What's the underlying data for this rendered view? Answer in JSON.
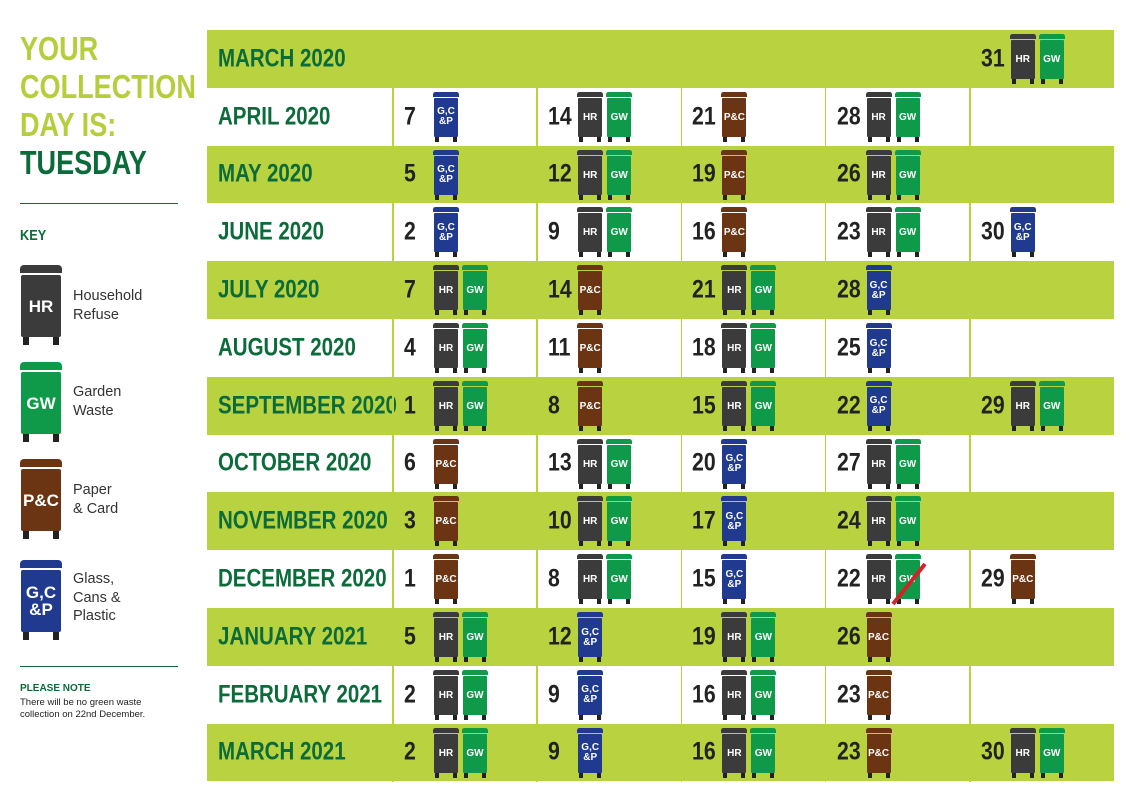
{
  "heading": {
    "line1": "YOUR",
    "line2": "COLLECTION",
    "line3": "DAY IS:",
    "day": "TUESDAY"
  },
  "key": {
    "title": "KEY",
    "items": [
      {
        "code": "HR",
        "label": "Household\nRefuse",
        "color": "#3b3b3b"
      },
      {
        "code": "GW",
        "label": "Garden\nWaste",
        "color": "#0e9a48"
      },
      {
        "code": "P&C",
        "label": "Paper\n& Card",
        "color": "#6b3514"
      },
      {
        "code": "G,C\n&P",
        "label": "Glass,\nCans &\nPlastic",
        "color": "#1f3a8f"
      }
    ]
  },
  "note": {
    "title": "PLEASE NOTE",
    "text": "There will be no green waste collection on 22nd December."
  },
  "bin_codes": {
    "HR": {
      "text": "HR",
      "color": "#3b3b3b"
    },
    "GW": {
      "text": "GW",
      "color": "#0e9a48"
    },
    "PC": {
      "text": "P&C",
      "color": "#6b3514"
    },
    "GCP": {
      "text": "G,C\n&P",
      "color": "#1f3a8f"
    }
  },
  "schedule": [
    {
      "month": "MARCH 2020",
      "weeks": [
        null,
        null,
        null,
        null,
        {
          "date": "31",
          "bins": [
            "HR",
            "GW"
          ]
        }
      ]
    },
    {
      "month": "APRIL 2020",
      "weeks": [
        {
          "date": "7",
          "bins": [
            "GCP"
          ]
        },
        {
          "date": "14",
          "bins": [
            "HR",
            "GW"
          ]
        },
        {
          "date": "21",
          "bins": [
            "PC"
          ]
        },
        {
          "date": "28",
          "bins": [
            "HR",
            "GW"
          ]
        },
        null
      ]
    },
    {
      "month": "MAY 2020",
      "weeks": [
        {
          "date": "5",
          "bins": [
            "GCP"
          ]
        },
        {
          "date": "12",
          "bins": [
            "HR",
            "GW"
          ]
        },
        {
          "date": "19",
          "bins": [
            "PC"
          ]
        },
        {
          "date": "26",
          "bins": [
            "HR",
            "GW"
          ]
        },
        null
      ]
    },
    {
      "month": "JUNE 2020",
      "weeks": [
        {
          "date": "2",
          "bins": [
            "GCP"
          ]
        },
        {
          "date": "9",
          "bins": [
            "HR",
            "GW"
          ]
        },
        {
          "date": "16",
          "bins": [
            "PC"
          ]
        },
        {
          "date": "23",
          "bins": [
            "HR",
            "GW"
          ]
        },
        {
          "date": "30",
          "bins": [
            "GCP"
          ]
        }
      ]
    },
    {
      "month": "JULY 2020",
      "weeks": [
        {
          "date": "7",
          "bins": [
            "HR",
            "GW"
          ]
        },
        {
          "date": "14",
          "bins": [
            "PC"
          ]
        },
        {
          "date": "21",
          "bins": [
            "HR",
            "GW"
          ]
        },
        {
          "date": "28",
          "bins": [
            "GCP"
          ]
        },
        null
      ]
    },
    {
      "month": "AUGUST 2020",
      "weeks": [
        {
          "date": "4",
          "bins": [
            "HR",
            "GW"
          ]
        },
        {
          "date": "11",
          "bins": [
            "PC"
          ]
        },
        {
          "date": "18",
          "bins": [
            "HR",
            "GW"
          ]
        },
        {
          "date": "25",
          "bins": [
            "GCP"
          ]
        },
        null
      ]
    },
    {
      "month": "SEPTEMBER 2020",
      "weeks": [
        {
          "date": "1",
          "bins": [
            "HR",
            "GW"
          ]
        },
        {
          "date": "8",
          "bins": [
            "PC"
          ]
        },
        {
          "date": "15",
          "bins": [
            "HR",
            "GW"
          ]
        },
        {
          "date": "22",
          "bins": [
            "GCP"
          ]
        },
        {
          "date": "29",
          "bins": [
            "HR",
            "GW"
          ]
        }
      ]
    },
    {
      "month": "OCTOBER 2020",
      "weeks": [
        {
          "date": "6",
          "bins": [
            "PC"
          ]
        },
        {
          "date": "13",
          "bins": [
            "HR",
            "GW"
          ]
        },
        {
          "date": "20",
          "bins": [
            "GCP"
          ]
        },
        {
          "date": "27",
          "bins": [
            "HR",
            "GW"
          ]
        },
        null
      ]
    },
    {
      "month": "NOVEMBER 2020",
      "weeks": [
        {
          "date": "3",
          "bins": [
            "PC"
          ]
        },
        {
          "date": "10",
          "bins": [
            "HR",
            "GW"
          ]
        },
        {
          "date": "17",
          "bins": [
            "GCP"
          ]
        },
        {
          "date": "24",
          "bins": [
            "HR",
            "GW"
          ]
        },
        null
      ]
    },
    {
      "month": "DECEMBER 2020",
      "weeks": [
        {
          "date": "1",
          "bins": [
            "PC"
          ]
        },
        {
          "date": "8",
          "bins": [
            "HR",
            "GW"
          ]
        },
        {
          "date": "15",
          "bins": [
            "GCP"
          ]
        },
        {
          "date": "22",
          "bins": [
            "HR",
            "GW"
          ],
          "cancelled": [
            "GW"
          ]
        },
        {
          "date": "29",
          "bins": [
            "PC"
          ]
        }
      ]
    },
    {
      "month": "JANUARY 2021",
      "weeks": [
        {
          "date": "5",
          "bins": [
            "HR",
            "GW"
          ]
        },
        {
          "date": "12",
          "bins": [
            "GCP"
          ]
        },
        {
          "date": "19",
          "bins": [
            "HR",
            "GW"
          ]
        },
        {
          "date": "26",
          "bins": [
            "PC"
          ]
        },
        null
      ]
    },
    {
      "month": "FEBRUARY 2021",
      "weeks": [
        {
          "date": "2",
          "bins": [
            "HR",
            "GW"
          ]
        },
        {
          "date": "9",
          "bins": [
            "GCP"
          ]
        },
        {
          "date": "16",
          "bins": [
            "HR",
            "GW"
          ]
        },
        {
          "date": "23",
          "bins": [
            "PC"
          ]
        },
        null
      ]
    },
    {
      "month": "MARCH 2021",
      "weeks": [
        {
          "date": "2",
          "bins": [
            "HR",
            "GW"
          ]
        },
        {
          "date": "9",
          "bins": [
            "GCP"
          ]
        },
        {
          "date": "16",
          "bins": [
            "HR",
            "GW"
          ]
        },
        {
          "date": "23",
          "bins": [
            "PC"
          ]
        },
        {
          "date": "30",
          "bins": [
            "HR",
            "GW"
          ]
        }
      ]
    }
  ]
}
